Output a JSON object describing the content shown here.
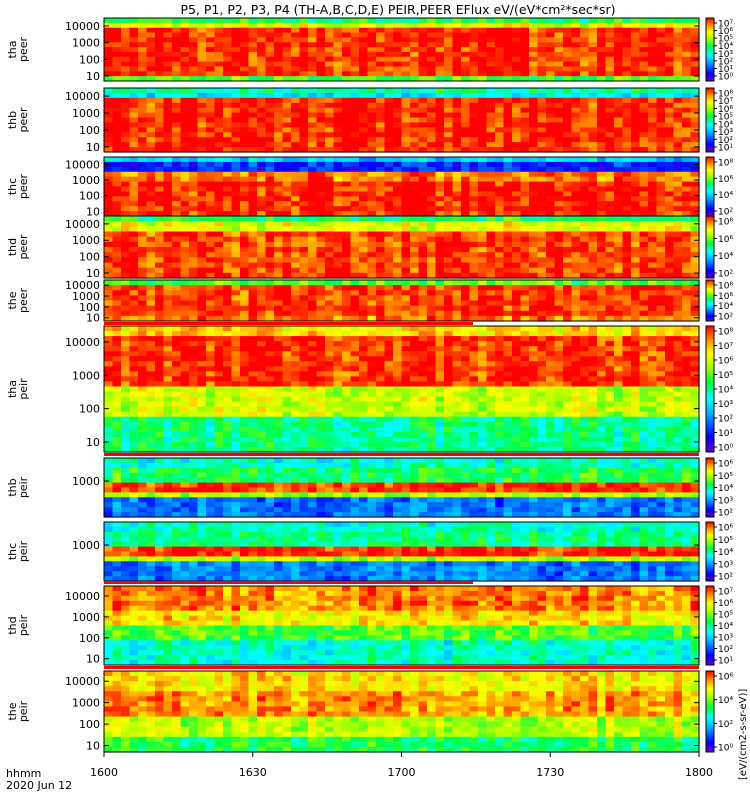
{
  "title": "P5, P1, P2, P3, P4 (TH-A,B,C,D,E) PEIR,PEER EFlux eV/(eV*cm²*sec*sr)",
  "colorbar_title": "[eV/(cm2-s-sr-eV)]",
  "chart_data": [
    {
      "type": "heatmap",
      "title": "P5, P1, P2, P3, P4 (TH-A,B,C,D,E) PEIR,PEER EFlux eV/(eV*cm²*sec*sr)",
      "x_axis": {
        "labels": [
          "1600",
          "1630",
          "1700",
          "1730",
          "1800"
        ],
        "units_label": "hhmm",
        "date_label": "2020 Jun 12",
        "range": [
          "16:00",
          "18:00"
        ]
      },
      "y_scale": "log",
      "color_scale": "log",
      "colormap": [
        "#9900ff",
        "#0000ff",
        "#00aaff",
        "#00ffff",
        "#00ff66",
        "#66ff00",
        "#ffff00",
        "#ff9900",
        "#ff0000"
      ],
      "panels": [
        {
          "label": [
            "tha",
            "peer"
          ],
          "yticks": [
            "10000",
            "1000",
            "100",
            "10"
          ],
          "ylim": [
            5,
            30000
          ],
          "cbar_ticks": [
            "10⁷",
            "10⁶",
            "10⁵",
            "10⁴",
            "10³",
            "10²",
            "10¹",
            "10⁰"
          ],
          "cbar_range": [
            1,
            10000000
          ]
        },
        {
          "label": [
            "thb",
            "peer"
          ],
          "yticks": [
            "10000",
            "1000",
            "100",
            "10"
          ],
          "ylim": [
            5,
            30000
          ],
          "cbar_ticks": [
            "10⁸",
            "10⁷",
            "10⁶",
            "10⁵",
            "10⁴",
            "10³",
            "10²",
            "10¹"
          ],
          "cbar_range": [
            10,
            100000000
          ]
        },
        {
          "label": [
            "thc",
            "peer"
          ],
          "yticks": [
            "10000",
            "1000",
            "100",
            "10"
          ],
          "ylim": [
            5,
            30000
          ],
          "cbar_ticks": [
            "10⁸",
            "10⁶",
            "10⁴",
            "10²"
          ],
          "cbar_range": [
            10,
            100000000
          ]
        },
        {
          "label": [
            "thd",
            "peer"
          ],
          "yticks": [
            "10000",
            "1000",
            "100",
            "10"
          ],
          "ylim": [
            5,
            30000
          ],
          "cbar_ticks": [
            "10⁸",
            "10⁶",
            "10⁴",
            "10²"
          ],
          "cbar_range": [
            10,
            100000000
          ]
        },
        {
          "label": [
            "the",
            "peer"
          ],
          "yticks": [
            "10000",
            "1000",
            "100",
            "10"
          ],
          "ylim": [
            5,
            30000
          ],
          "cbar_ticks": [
            "10⁸",
            "10⁶",
            "10⁴",
            "10²"
          ],
          "cbar_range": [
            10,
            100000000
          ]
        },
        {
          "label": [
            "tha",
            "peir"
          ],
          "yticks": [
            "10000",
            "1000",
            "100",
            "10"
          ],
          "ylim": [
            5,
            30000
          ],
          "cbar_ticks": [
            "10⁸",
            "10⁷",
            "10⁶",
            "10⁵",
            "10⁴",
            "10³",
            "10²",
            "10¹",
            "10⁰"
          ],
          "cbar_range": [
            1,
            100000000
          ]
        },
        {
          "label": [
            "thb",
            "peir"
          ],
          "yticks": [
            "1000"
          ],
          "ylim": [
            5,
            30000
          ],
          "cbar_ticks": [
            "10⁶",
            "10⁵",
            "10⁴",
            "10³",
            "10²"
          ],
          "cbar_range": [
            10,
            10000000
          ]
        },
        {
          "label": [
            "thc",
            "peir"
          ],
          "yticks": [
            "1000"
          ],
          "ylim": [
            5,
            30000
          ],
          "cbar_ticks": [
            "10⁶",
            "10⁵",
            "10⁴",
            "10³",
            "10²"
          ],
          "cbar_range": [
            10,
            10000000
          ]
        },
        {
          "label": [
            "thd",
            "peir"
          ],
          "yticks": [
            "10000",
            "1000",
            "100",
            "10"
          ],
          "ylim": [
            5,
            30000
          ],
          "cbar_ticks": [
            "10⁷",
            "10⁶",
            "10⁵",
            "10⁴",
            "10³",
            "10²",
            "10¹"
          ],
          "cbar_range": [
            1,
            10000000
          ]
        },
        {
          "label": [
            "the",
            "peir"
          ],
          "yticks": [
            "10000",
            "1000",
            "100",
            "10"
          ],
          "ylim": [
            5,
            30000
          ],
          "cbar_ticks": [
            "10⁶",
            "10⁴",
            "10²",
            "10⁰"
          ],
          "cbar_range": [
            1,
            10000000
          ]
        }
      ]
    }
  ]
}
